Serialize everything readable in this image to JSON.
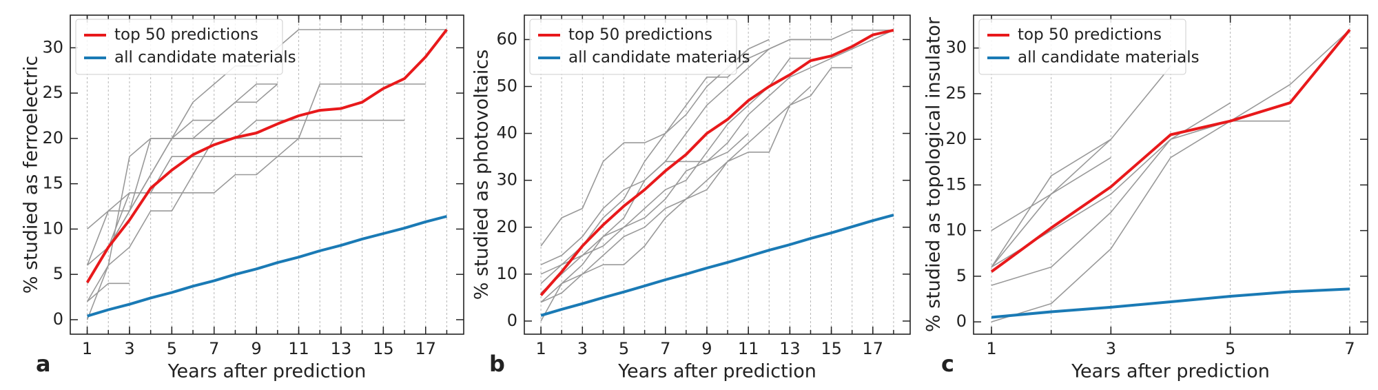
{
  "chart_data": [
    {
      "type": "line",
      "label": "a",
      "xlabel": "Years after prediction",
      "ylabel": "% studied as ferroelectric",
      "x": [
        1,
        2,
        3,
        4,
        5,
        6,
        7,
        8,
        9,
        10,
        11,
        12,
        13,
        14,
        15,
        16,
        17,
        18
      ],
      "xlim": [
        0.2,
        18.8
      ],
      "xticks": [
        1,
        3,
        5,
        7,
        9,
        11,
        13,
        15,
        17
      ],
      "xminor": [
        1,
        2,
        3,
        4,
        5,
        6,
        7,
        8,
        9,
        10,
        11,
        12,
        13,
        14,
        15,
        16,
        17,
        18
      ],
      "ylim": [
        -1.6,
        33.6
      ],
      "yticks": [
        0,
        5,
        10,
        15,
        20,
        25,
        30
      ],
      "grid": true,
      "legend": "upper left",
      "series": [
        {
          "color": "#999999",
          "values": [
            6,
            12,
            12,
            16,
            20,
            22,
            22,
            24,
            26,
            26,
            null,
            null,
            null,
            null,
            null,
            null,
            null,
            null
          ]
        },
        {
          "color": "#999999",
          "values": [
            2,
            6,
            18,
            20,
            20,
            20,
            22,
            24,
            24,
            26,
            null,
            null,
            null,
            null,
            null,
            null,
            null,
            null
          ]
        },
        {
          "color": "#999999",
          "values": [
            10,
            12,
            14,
            14,
            18,
            18,
            18,
            18,
            18,
            18,
            18,
            18,
            18,
            18,
            null,
            null,
            null,
            null
          ]
        },
        {
          "color": "#999999",
          "values": [
            0,
            6,
            8,
            12,
            12,
            16,
            20,
            20,
            22,
            22,
            22,
            22,
            22,
            22,
            22,
            22,
            null,
            null
          ]
        },
        {
          "color": "#999999",
          "values": [
            4,
            8,
            12,
            20,
            20,
            20,
            20,
            20,
            20,
            20,
            20,
            20,
            20,
            null,
            null,
            null,
            null,
            null
          ]
        },
        {
          "color": "#999999",
          "values": [
            2,
            4,
            4,
            null,
            null,
            null,
            null,
            null,
            null,
            null,
            null,
            null,
            null,
            null,
            null,
            null,
            null,
            null
          ]
        },
        {
          "color": "#999999",
          "values": [
            6,
            8,
            14,
            14,
            14,
            14,
            14,
            16,
            16,
            18,
            20,
            26,
            26,
            26,
            26,
            26,
            26,
            null
          ]
        },
        {
          "color": "#999999",
          "values": [
            4,
            8,
            12,
            16,
            20,
            24,
            26,
            28,
            28,
            30,
            32,
            32,
            32,
            32,
            32,
            32,
            32,
            32
          ]
        },
        {
          "name": "top 50 predictions",
          "color": "#e8191b",
          "width": 4,
          "values": [
            4.1,
            8,
            11,
            14.5,
            16.5,
            18.2,
            19.3,
            20.1,
            20.6,
            21.6,
            22.5,
            23.1,
            23.3,
            24,
            25.5,
            26.6,
            29,
            32
          ]
        },
        {
          "name": "all candidate materials",
          "color": "#1a7ab5",
          "width": 4,
          "values": [
            0.4,
            1.1,
            1.7,
            2.4,
            3,
            3.7,
            4.3,
            5,
            5.6,
            6.3,
            6.9,
            7.6,
            8.2,
            8.9,
            9.5,
            10.1,
            10.8,
            11.4
          ]
        }
      ]
    },
    {
      "type": "line",
      "label": "b",
      "xlabel": "Years after prediction",
      "ylabel": "% studied as photovoltaics",
      "x": [
        1,
        2,
        3,
        4,
        5,
        6,
        7,
        8,
        9,
        10,
        11,
        12,
        13,
        14,
        15,
        16,
        17,
        18
      ],
      "xlim": [
        0.2,
        18.8
      ],
      "xticks": [
        1,
        3,
        5,
        7,
        9,
        11,
        13,
        15,
        17
      ],
      "xminor": [
        1,
        2,
        3,
        4,
        5,
        6,
        7,
        8,
        9,
        10,
        11,
        12,
        13,
        14,
        15,
        16,
        17,
        18
      ],
      "ylim": [
        -2.8,
        65.2
      ],
      "yticks": [
        0,
        10,
        20,
        30,
        40,
        50,
        60
      ],
      "grid": true,
      "legend": "upper left",
      "series": [
        {
          "color": "#999999",
          "values": [
            16,
            22,
            24,
            34,
            38,
            38,
            40,
            46,
            52,
            52,
            56,
            58,
            60,
            60,
            60,
            null,
            null,
            null
          ]
        },
        {
          "color": "#999999",
          "values": [
            8,
            12,
            14,
            18,
            22,
            30,
            34,
            40,
            46,
            50,
            54,
            58,
            60,
            60,
            60,
            62,
            62,
            62
          ]
        },
        {
          "color": "#999999",
          "values": [
            4,
            8,
            12,
            18,
            20,
            24,
            28,
            30,
            36,
            42,
            46,
            50,
            56,
            56,
            null,
            null,
            null,
            null
          ]
        },
        {
          "color": "#999999",
          "values": [
            6,
            10,
            14,
            16,
            20,
            22,
            26,
            32,
            34,
            38,
            44,
            48,
            52,
            54,
            56,
            58,
            60,
            62
          ]
        },
        {
          "color": "#999999",
          "values": [
            4,
            6,
            10,
            12,
            12,
            16,
            22,
            26,
            30,
            34,
            38,
            42,
            46,
            50,
            null,
            null,
            null,
            null
          ]
        },
        {
          "color": "#999999",
          "values": [
            12,
            14,
            18,
            24,
            28,
            30,
            34,
            34,
            34,
            36,
            40,
            null,
            null,
            null,
            null,
            null,
            null,
            null
          ]
        },
        {
          "color": "#999999",
          "values": [
            0,
            8,
            10,
            14,
            18,
            20,
            24,
            26,
            28,
            34,
            36,
            36,
            46,
            48,
            54,
            54,
            null,
            null
          ]
        },
        {
          "color": "#999999",
          "values": [
            10,
            12,
            16,
            22,
            26,
            34,
            40,
            44,
            50,
            54,
            58,
            60,
            null,
            null,
            null,
            null,
            null,
            null
          ]
        },
        {
          "name": "top 50 predictions",
          "color": "#e8191b",
          "width": 4,
          "values": [
            5.5,
            10.5,
            16,
            20.5,
            24.5,
            28,
            32,
            35.5,
            40,
            43,
            47,
            50,
            52.5,
            55.5,
            56.5,
            58.5,
            61,
            62
          ]
        },
        {
          "name": "all candidate materials",
          "color": "#1a7ab5",
          "width": 4,
          "values": [
            1.2,
            2.5,
            3.7,
            5,
            6.2,
            7.5,
            8.8,
            10,
            11.3,
            12.5,
            13.8,
            15.1,
            16.3,
            17.6,
            18.8,
            20.1,
            21.4,
            22.6
          ]
        }
      ]
    },
    {
      "type": "line",
      "label": "c",
      "xlabel": "Years after prediction",
      "ylabel": "% studied as topological insulator",
      "x": [
        1,
        2,
        3,
        4,
        5,
        6,
        7
      ],
      "xlim": [
        0.7,
        7.3
      ],
      "xticks": [
        1,
        3,
        5,
        7
      ],
      "xminor": [
        1,
        2,
        3,
        4,
        5,
        6,
        7
      ],
      "ylim": [
        -1.35,
        33.6
      ],
      "yticks": [
        0,
        5,
        10,
        15,
        20,
        25,
        30
      ],
      "grid": true,
      "legend": "upper left",
      "series": [
        {
          "color": "#999999",
          "values": [
            6,
            14,
            20,
            28,
            null,
            null,
            null
          ]
        },
        {
          "color": "#999999",
          "values": [
            10,
            14,
            18,
            null,
            null,
            null,
            null
          ]
        },
        {
          "color": "#999999",
          "values": [
            4,
            6,
            12,
            20,
            24,
            null,
            null
          ]
        },
        {
          "color": "#999999",
          "values": [
            0,
            2,
            8,
            18,
            22,
            22,
            null
          ]
        },
        {
          "color": "#999999",
          "values": [
            6,
            16,
            20,
            null,
            null,
            null,
            null
          ]
        },
        {
          "color": "#999999",
          "values": [
            6,
            10,
            14,
            20,
            22,
            26,
            32
          ]
        },
        {
          "name": "top 50 predictions",
          "color": "#e8191b",
          "width": 4,
          "values": [
            5.5,
            10.3,
            14.8,
            20.5,
            22,
            24,
            32
          ]
        },
        {
          "name": "all candidate materials",
          "color": "#1a7ab5",
          "width": 4,
          "values": [
            0.5,
            1.1,
            1.6,
            2.2,
            2.8,
            3.3,
            3.6
          ]
        }
      ]
    }
  ]
}
